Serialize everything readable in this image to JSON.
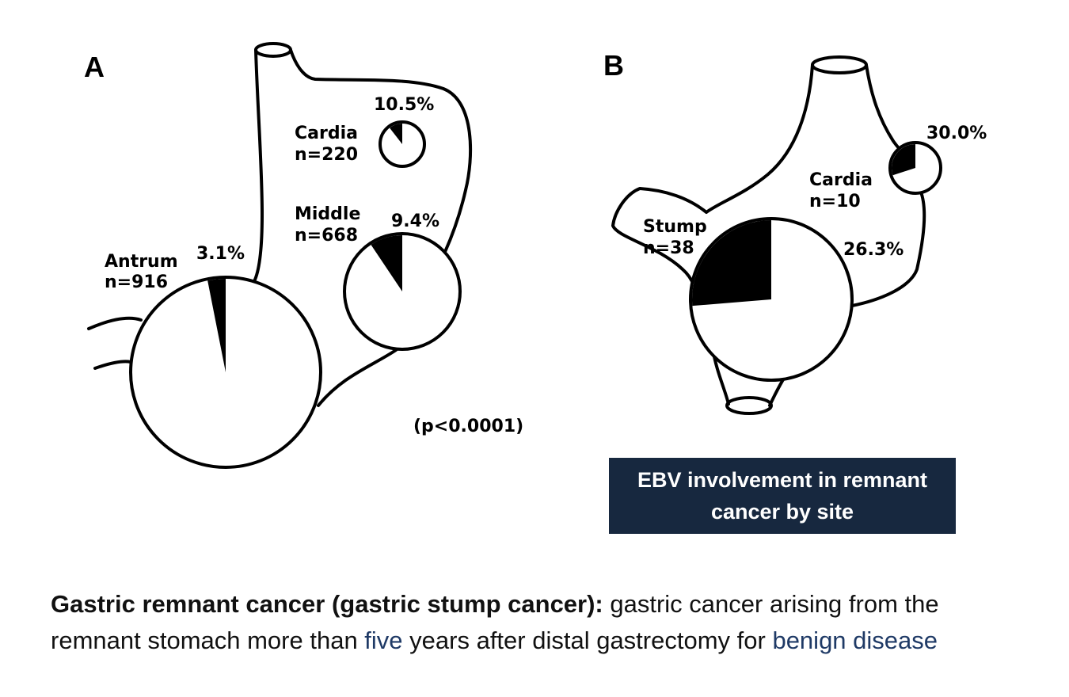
{
  "panel_a": {
    "letter": "A",
    "sites": [
      {
        "name": "Cardia",
        "n": "n=220",
        "pct": "10.5%",
        "value": 10.5
      },
      {
        "name": "Middle",
        "n": "n=668",
        "pct": "9.4%",
        "value": 9.4
      },
      {
        "name": "Antrum",
        "n": "n=916",
        "pct": "3.1%",
        "value": 3.1
      }
    ],
    "pvalue": "(p<0.0001)"
  },
  "panel_b": {
    "letter": "B",
    "sites": [
      {
        "name": "Cardia",
        "n": "n=10",
        "pct": "30.0%",
        "value": 30.0
      },
      {
        "name": "Stump",
        "n": "n=38",
        "pct": "26.3%",
        "value": 26.3
      }
    ]
  },
  "callout": {
    "line1": "EBV involvement in remnant",
    "line2": "cancer by site"
  },
  "definition": {
    "term": "Gastric remnant cancer (gastric stump cancer):",
    "text1": " gastric cancer arising from the",
    "text2": "remnant stomach more than ",
    "highlight1": "five",
    "text3": " years after distal gastrectomy for ",
    "highlight2": "benign disease"
  },
  "colors": {
    "callout_bg": "#17283f",
    "highlight": "#1f3a66"
  }
}
